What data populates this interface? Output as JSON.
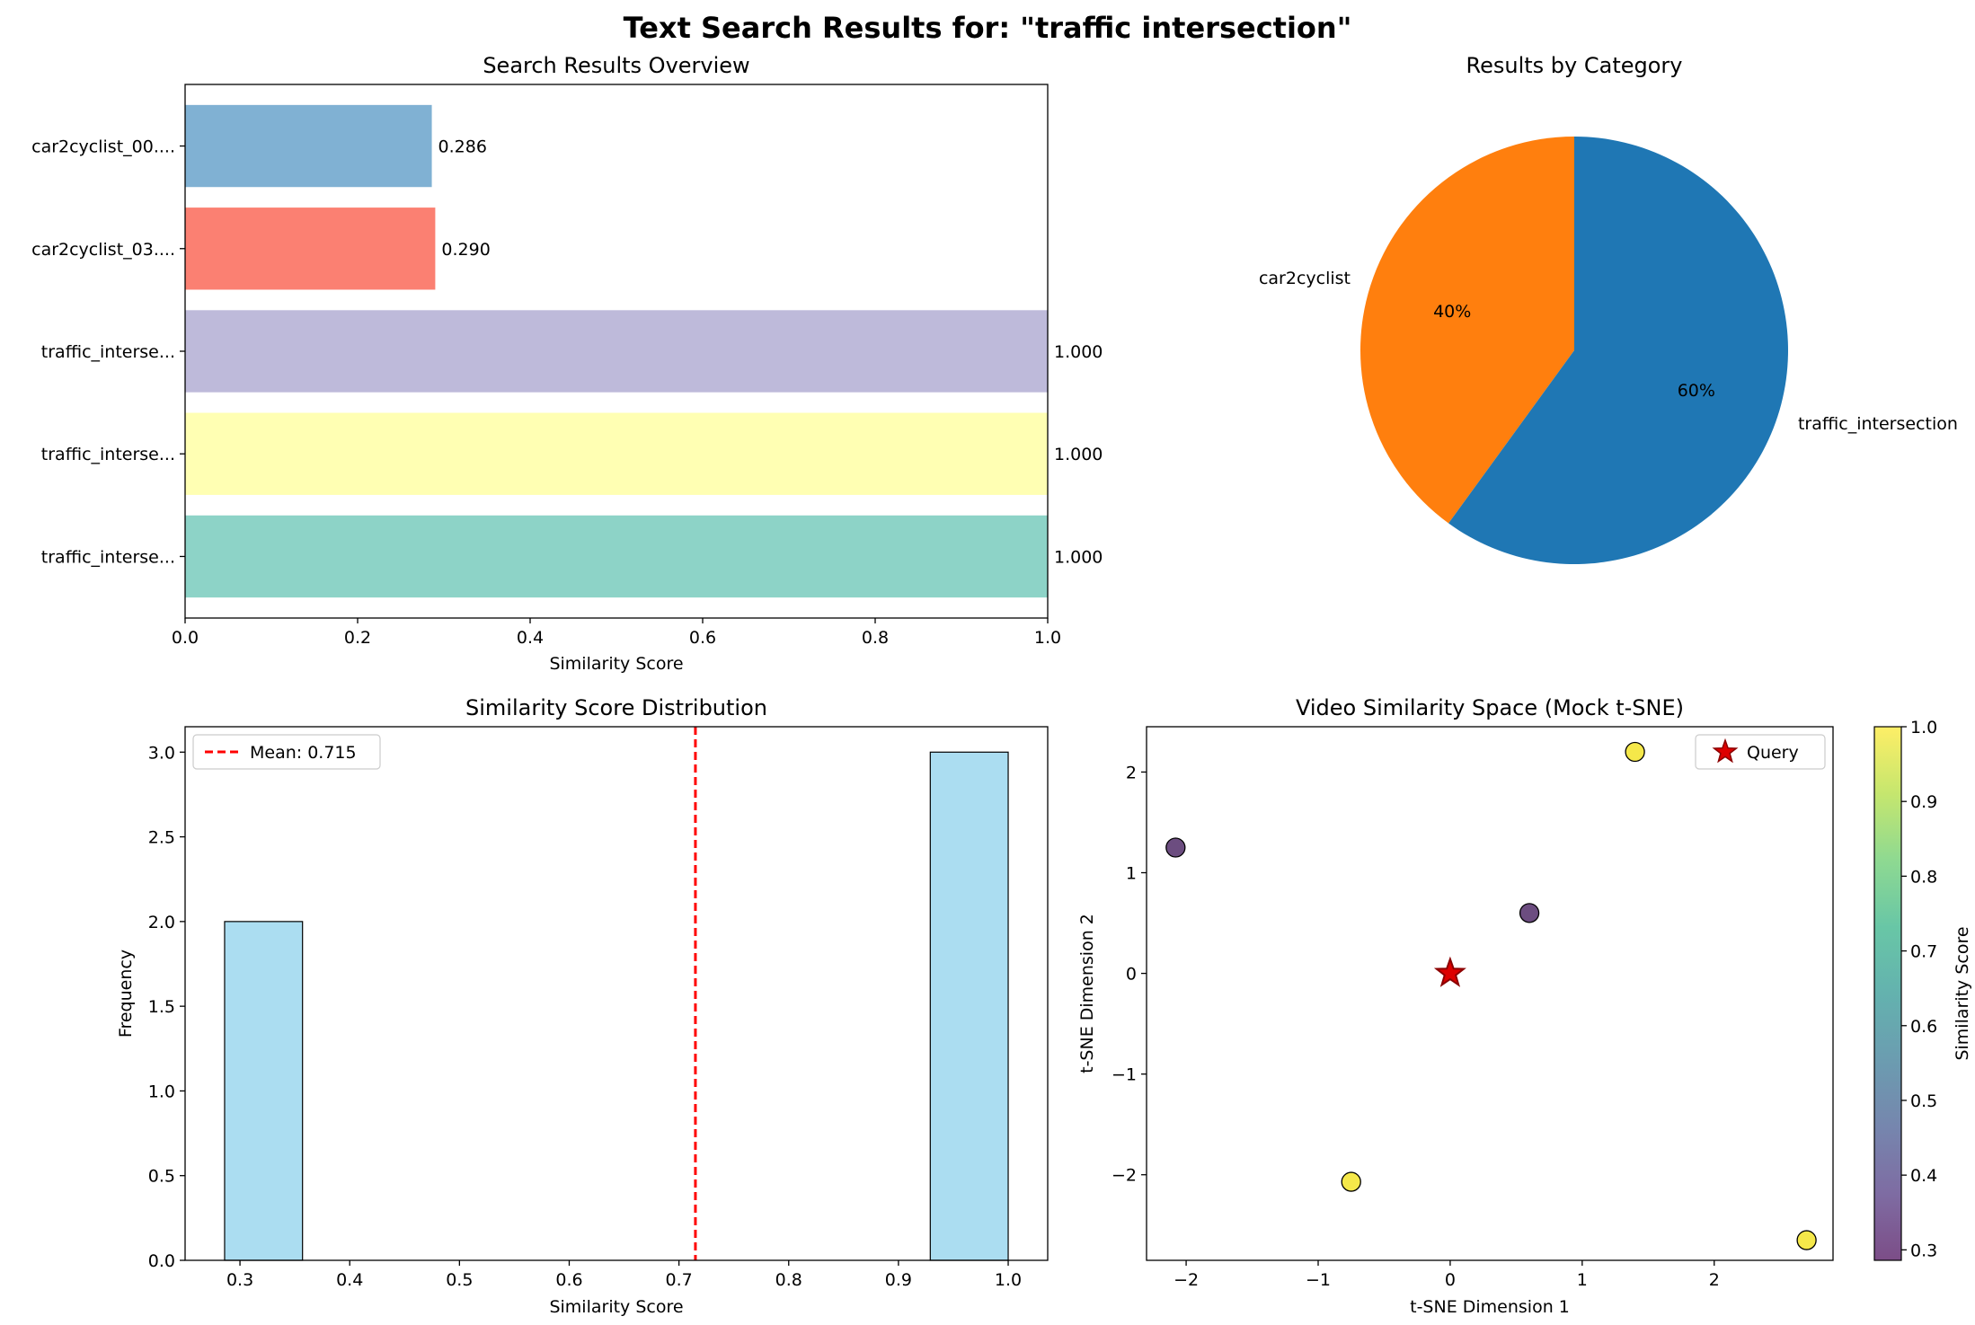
{
  "figure": {
    "title": "Text Search Results for: \"traffic intersection\""
  },
  "chart_data": [
    {
      "id": "bar",
      "type": "bar",
      "orientation": "horizontal",
      "title": "Search Results Overview",
      "xlabel": "Similarity Score",
      "xlim": [
        0,
        1
      ],
      "xticks": [
        0.0,
        0.2,
        0.4,
        0.6,
        0.8,
        1.0
      ],
      "xtick_labels": [
        "0.0",
        "0.2",
        "0.4",
        "0.6",
        "0.8",
        "1.0"
      ],
      "categories": [
        "car2cyclist_00....",
        "car2cyclist_03....",
        "traffic_interse...",
        "traffic_interse...",
        "traffic_interse..."
      ],
      "values": [
        0.286,
        0.29,
        1.0,
        1.0,
        1.0
      ],
      "value_labels": [
        "0.286",
        "0.290",
        "1.000",
        "1.000",
        "1.000"
      ],
      "colors": [
        "#80b1d3",
        "#fb8072",
        "#bebada",
        "#ffffb3",
        "#8dd3c7"
      ]
    },
    {
      "id": "pie",
      "type": "pie",
      "title": "Results by Category",
      "labels": [
        "car2cyclist",
        "traffic_intersection"
      ],
      "values": [
        40,
        60
      ],
      "pct_labels": [
        "40%",
        "60%"
      ],
      "colors": [
        "#ff7f0e",
        "#1f77b4"
      ]
    },
    {
      "id": "hist",
      "type": "bar",
      "kind": "histogram",
      "title": "Similarity Score Distribution",
      "xlabel": "Similarity Score",
      "ylabel": "Frequency",
      "bins": [
        [
          0.286,
          0.357
        ],
        [
          0.929,
          1.0
        ]
      ],
      "counts": [
        2,
        3
      ],
      "xlim": [
        0.25,
        1.036
      ],
      "ylim": [
        0,
        3.15
      ],
      "xticks": [
        0.3,
        0.4,
        0.5,
        0.6,
        0.7,
        0.8,
        0.9,
        1.0
      ],
      "xtick_labels": [
        "0.3",
        "0.4",
        "0.5",
        "0.6",
        "0.7",
        "0.8",
        "0.9",
        "1.0"
      ],
      "yticks": [
        0,
        0.5,
        1.0,
        1.5,
        2.0,
        2.5,
        3.0
      ],
      "ytick_labels": [
        "0.0",
        "0.5",
        "1.0",
        "1.5",
        "2.0",
        "2.5",
        "3.0"
      ],
      "mean": 0.715,
      "legend": [
        "Mean: 0.715"
      ],
      "bar_color": "#87ceeb",
      "mean_color": "#ff0000"
    },
    {
      "id": "scatter",
      "type": "scatter",
      "title": "Video Similarity Space (Mock t-SNE)",
      "xlabel": "t-SNE Dimension 1",
      "ylabel": "t-SNE Dimension 2",
      "xlim": [
        -2.3,
        2.9
      ],
      "ylim": [
        -2.85,
        2.45
      ],
      "xticks": [
        -2,
        -1,
        0,
        1,
        2
      ],
      "xtick_labels": [
        "−2",
        "−1",
        "0",
        "1",
        "2"
      ],
      "yticks": [
        -2,
        -1,
        0,
        1,
        2
      ],
      "ytick_labels": [
        "−2",
        "−1",
        "0",
        "1",
        "2"
      ],
      "points": [
        {
          "x": -2.08,
          "y": 1.25,
          "score": 0.286
        },
        {
          "x": 0.6,
          "y": 0.6,
          "score": 0.29
        },
        {
          "x": 1.4,
          "y": 2.2,
          "score": 1.0
        },
        {
          "x": -0.75,
          "y": -2.07,
          "score": 1.0
        },
        {
          "x": 2.7,
          "y": -2.65,
          "score": 1.0
        }
      ],
      "query": {
        "x": 0,
        "y": 0
      },
      "legend": [
        "Query"
      ],
      "colorbar": {
        "label": "Similarity Score",
        "range": [
          0.286,
          1.0
        ],
        "ticks": [
          0.3,
          0.4,
          0.5,
          0.6,
          0.7,
          0.8,
          0.9,
          1.0
        ],
        "tick_labels": [
          "0.3",
          "0.4",
          "0.5",
          "0.6",
          "0.7",
          "0.8",
          "0.9",
          "1.0"
        ]
      }
    }
  ]
}
